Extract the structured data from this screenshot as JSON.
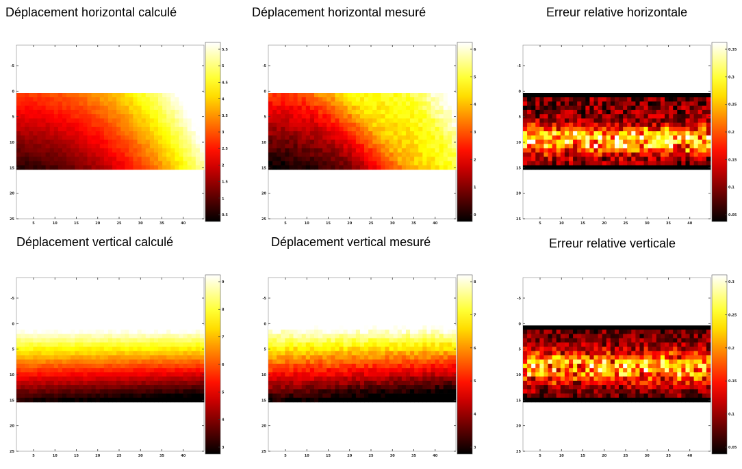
{
  "chart_data": [
    {
      "type": "heatmap",
      "title": "Déplacement horizontal calculé",
      "xlabel": "",
      "ylabel": "",
      "pattern": "h_calc",
      "xlim": [
        0,
        45
      ],
      "ylim": [
        -25,
        25
      ],
      "grid_cols": 45,
      "grid_rows": 18,
      "x_ticks": [
        "5",
        "10",
        "15",
        "20",
        "25",
        "30",
        "35",
        "40"
      ],
      "y_ticks": [
        "-5",
        "0",
        "5",
        "10",
        "15",
        "20",
        "25"
      ],
      "colorbar_ticks": [
        "0.5",
        "1",
        "1.5",
        "2",
        "2.5",
        "3",
        "3.5",
        "4",
        "4.5",
        "5",
        "5.5"
      ],
      "colormap": "hot"
    },
    {
      "type": "heatmap",
      "title": "Déplacement horizontal mesuré",
      "xlabel": "",
      "ylabel": "",
      "pattern": "h_meas",
      "xlim": [
        0,
        45
      ],
      "ylim": [
        -25,
        25
      ],
      "grid_cols": 45,
      "grid_rows": 18,
      "x_ticks": [
        "5",
        "10",
        "15",
        "20",
        "25",
        "30",
        "35",
        "40"
      ],
      "y_ticks": [
        "-5",
        "0",
        "5",
        "10",
        "15",
        "20",
        "25"
      ],
      "colorbar_ticks": [
        "0",
        "1",
        "2",
        "3",
        "4",
        "5",
        "6"
      ],
      "colormap": "hot"
    },
    {
      "type": "heatmap",
      "title": "Erreur relative horizontale",
      "xlabel": "",
      "ylabel": "",
      "pattern": "h_err",
      "xlim": [
        0,
        45
      ],
      "ylim": [
        -25,
        25
      ],
      "grid_cols": 45,
      "grid_rows": 18,
      "x_ticks": [
        "5",
        "10",
        "15",
        "20",
        "25",
        "30",
        "35",
        "40"
      ],
      "y_ticks": [
        "-5",
        "0",
        "5",
        "10",
        "15",
        "20",
        "25"
      ],
      "colorbar_ticks": [
        "0.05",
        "0.1",
        "0.15",
        "0.2",
        "0.25",
        "0.3",
        "0.35"
      ],
      "colormap": "hot"
    },
    {
      "type": "heatmap",
      "title": "Déplacement vertical calculé",
      "xlabel": "",
      "ylabel": "",
      "pattern": "v_calc",
      "xlim": [
        0,
        45
      ],
      "ylim": [
        -25,
        25
      ],
      "grid_cols": 45,
      "grid_rows": 18,
      "x_ticks": [
        "5",
        "10",
        "15",
        "20",
        "25",
        "30",
        "35",
        "40"
      ],
      "y_ticks": [
        "-5",
        "0",
        "5",
        "10",
        "15",
        "20",
        "25"
      ],
      "colorbar_ticks": [
        "3",
        "4",
        "5",
        "6",
        "7",
        "8",
        "9"
      ],
      "colormap": "hot"
    },
    {
      "type": "heatmap",
      "title": "Déplacement vertical mesuré",
      "xlabel": "",
      "ylabel": "",
      "pattern": "v_meas",
      "xlim": [
        0,
        45
      ],
      "ylim": [
        -25,
        25
      ],
      "grid_cols": 45,
      "grid_rows": 18,
      "x_ticks": [
        "5",
        "10",
        "15",
        "20",
        "25",
        "30",
        "35",
        "40"
      ],
      "y_ticks": [
        "-5",
        "0",
        "5",
        "10",
        "15",
        "20",
        "25"
      ],
      "colorbar_ticks": [
        "3",
        "4",
        "5",
        "6",
        "7",
        "8"
      ],
      "colormap": "hot"
    },
    {
      "type": "heatmap",
      "title": "Erreur relative verticale",
      "xlabel": "",
      "ylabel": "",
      "pattern": "v_err",
      "xlim": [
        0,
        45
      ],
      "ylim": [
        -25,
        25
      ],
      "grid_cols": 45,
      "grid_rows": 18,
      "x_ticks": [
        "5",
        "10",
        "15",
        "20",
        "25",
        "30",
        "35",
        "40"
      ],
      "y_ticks": [
        "-5",
        "0",
        "5",
        "10",
        "15",
        "20",
        "25"
      ],
      "colorbar_ticks": [
        "0.05",
        "0.1",
        "0.15",
        "0.2",
        "0.25",
        "0.3"
      ],
      "colormap": "hot"
    }
  ]
}
